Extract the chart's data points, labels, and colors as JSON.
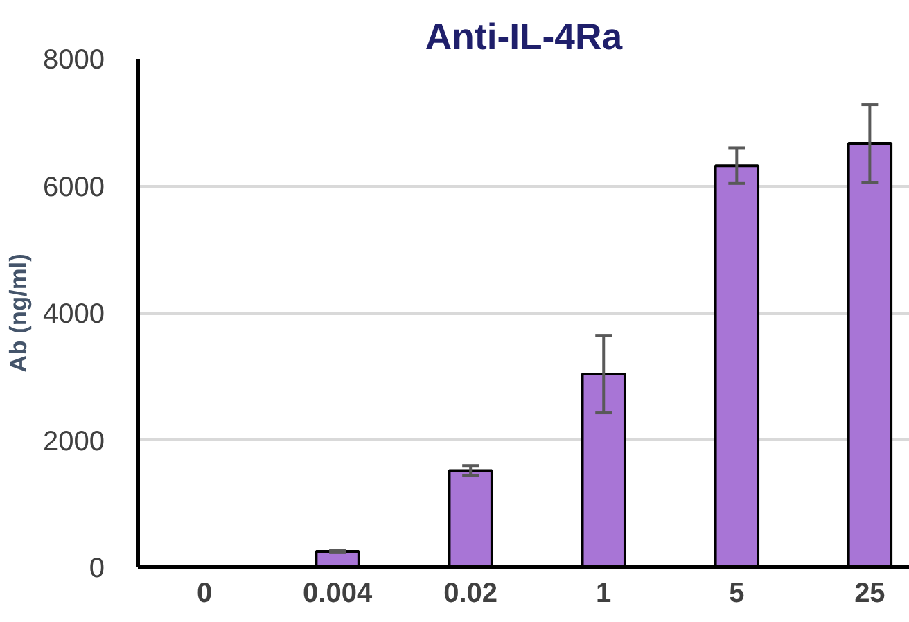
{
  "chart_data": {
    "type": "bar",
    "title": "Anti-IL-4Ra",
    "ylabel": "Ab (ng/ml)",
    "categories": [
      "0",
      "0.004",
      "0.02",
      "1",
      "5",
      "25"
    ],
    "values": [
      0,
      250,
      1520,
      3040,
      6320,
      6670
    ],
    "errors": [
      null,
      20,
      80,
      610,
      280,
      610
    ],
    "color": "#a875d6",
    "ylim": [
      0,
      8000
    ],
    "yticks": [
      0,
      2000,
      4000,
      6000,
      8000
    ],
    "grid": "y"
  }
}
